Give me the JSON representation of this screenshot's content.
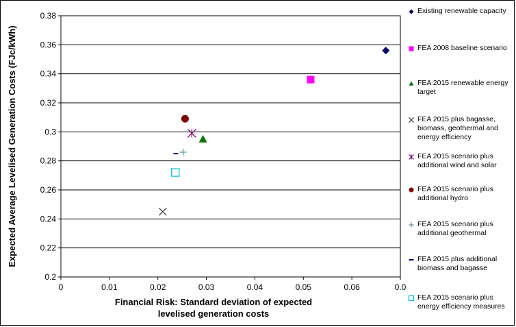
{
  "chart_data": {
    "type": "scatter",
    "xlabel_lines": [
      "Financial Risk: Standard deviation of expected",
      "levelised generation costs"
    ],
    "ylabel": "Expected Average Levelised Generation Costs (FJc/kWh)",
    "xlim": [
      0,
      0.07
    ],
    "ylim": [
      0.2,
      0.38
    ],
    "x_ticks": [
      "0",
      "0.01",
      "0.02",
      "0.03",
      "0.04",
      "0.05",
      "0.06",
      "0.0"
    ],
    "y_ticks": [
      "0.2",
      "0.22",
      "0.24",
      "0.26",
      "0.28",
      "0.3",
      "0.32",
      "0.34",
      "0.36",
      "0.38"
    ],
    "grid": "horizontal",
    "legend_position": "right",
    "series": [
      {
        "name": "Existing renewable capacity",
        "marker": "diamond",
        "color": "#000066",
        "x": 0.067,
        "y": 0.356
      },
      {
        "name": "FEA 2008 baseline scenario",
        "marker": "square",
        "color": "#ff00ff",
        "x": 0.0515,
        "y": 0.336
      },
      {
        "name": "FEA 2015 renewable energy target",
        "marker": "triangle",
        "color": "#007700",
        "x": 0.0293,
        "y": 0.295
      },
      {
        "name": "FEA 2015 plus bagasse, biomass, geothermal and energy efficiency",
        "marker": "x",
        "color": "#333333",
        "x": 0.021,
        "y": 0.245
      },
      {
        "name": "FEA 2015 scenario plus additional wind and solar",
        "marker": "star",
        "color": "#800080",
        "x": 0.027,
        "y": 0.299
      },
      {
        "name": "FEA 2015 scenario plus additional hydro",
        "marker": "circle",
        "color": "#800000",
        "x": 0.0256,
        "y": 0.309
      },
      {
        "name": "FEA 2015 scenario plus additional geothermal",
        "marker": "plus",
        "color": "#4a8a9c",
        "x": 0.0252,
        "y": 0.286
      },
      {
        "name": "FEA 2015 plus additional biomass and bagasse",
        "marker": "dash",
        "color": "#000080",
        "x": 0.0237,
        "y": 0.285
      },
      {
        "name": "FEA 2015 scenario plus energy efficiency measures",
        "marker": "open-square",
        "color": "#00c0e0",
        "x": 0.0236,
        "y": 0.272
      }
    ],
    "legend_entries": [
      [
        "Existing renewable capacity"
      ],
      [
        "FEA 2008 baseline scenario"
      ],
      [
        "FEA 2015 renewable energy",
        "target"
      ],
      [
        "FEA 2015 plus bagasse,",
        "biomass, geothermal and",
        "energy efficiency"
      ],
      [
        "FEA 2015 scenario plus",
        "additional wind and solar"
      ],
      [
        "FEA 2015 scenario plus",
        "additional hydro"
      ],
      [
        "FEA 2015 scenario plus",
        "additional geothermal"
      ],
      [
        "FEA 2015 plus additional",
        "biomass and bagasse"
      ],
      [
        "FEA 2015 scenario plus",
        "energy efficiency measures"
      ]
    ]
  }
}
